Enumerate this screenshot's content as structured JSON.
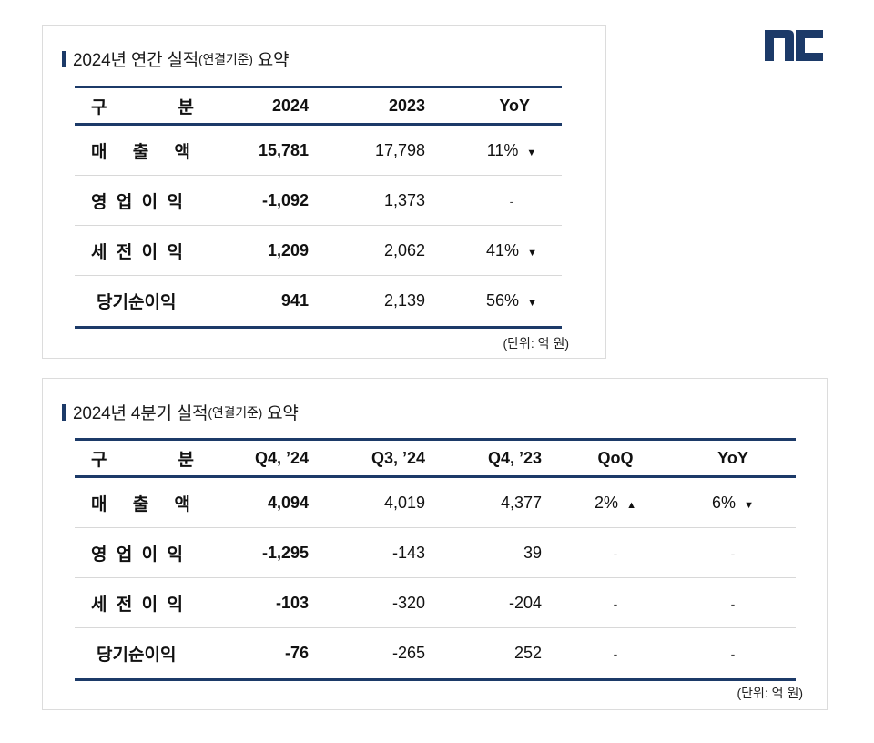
{
  "logo": {
    "text": "nc",
    "color": "#1c3a68"
  },
  "annual": {
    "title_main": "2024년 연간 실적",
    "title_small": "(연결기준)",
    "title_tail": " 요약",
    "headers": {
      "col1a": "구",
      "col1b": "분",
      "c2024": "2024",
      "c2023": "2023",
      "yoy": "YoY"
    },
    "rows": [
      {
        "label": "매출액",
        "v2024": "15,781",
        "v2023": "17,798",
        "yoy": "11%",
        "yoy_dir": "▼"
      },
      {
        "label": "영업이익",
        "v2024": "-1,092",
        "v2023": "1,373",
        "yoy": "-",
        "yoy_dir": ""
      },
      {
        "label": "세전이익",
        "v2024": "1,209",
        "v2023": "2,062",
        "yoy": "41%",
        "yoy_dir": "▼"
      },
      {
        "label": "당기순이익",
        "v2024": "941",
        "v2023": "2,139",
        "yoy": "56%",
        "yoy_dir": "▼"
      }
    ],
    "unit": "(단위: 억 원)"
  },
  "quarterly": {
    "title_main": "2024년 4분기 실적",
    "title_small": "(연결기준)",
    "title_tail": " 요약",
    "headers": {
      "col1a": "구",
      "col1b": "분",
      "q4_24": "Q4, ’24",
      "q3_24": "Q3, ’24",
      "q4_23": "Q4, ’23",
      "qoq": "QoQ",
      "yoy": "YoY"
    },
    "rows": [
      {
        "label": "매출액",
        "q4_24": "4,094",
        "q3_24": "4,019",
        "q4_23": "4,377",
        "qoq": "2%",
        "qoq_dir": "▲",
        "yoy": "6%",
        "yoy_dir": "▼"
      },
      {
        "label": "영업이익",
        "q4_24": "-1,295",
        "q3_24": "-143",
        "q4_23": "39",
        "qoq": "-",
        "qoq_dir": "",
        "yoy": "-",
        "yoy_dir": ""
      },
      {
        "label": "세전이익",
        "q4_24": "-103",
        "q3_24": "-320",
        "q4_23": "-204",
        "qoq": "-",
        "qoq_dir": "",
        "yoy": "-",
        "yoy_dir": ""
      },
      {
        "label": "당기순이익",
        "q4_24": "-76",
        "q3_24": "-265",
        "q4_23": "252",
        "qoq": "-",
        "qoq_dir": "",
        "yoy": "-",
        "yoy_dir": ""
      }
    ],
    "unit": "(단위: 억 원)"
  }
}
